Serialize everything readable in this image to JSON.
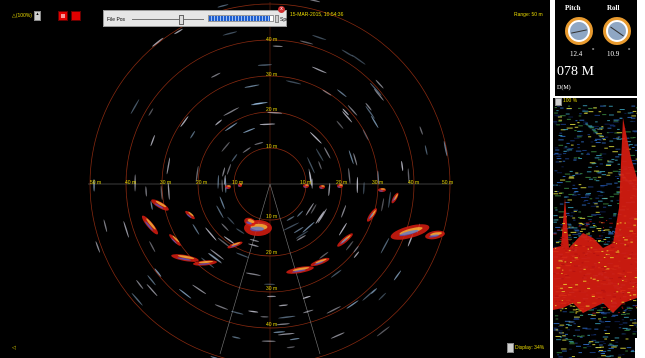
{
  "zoom_label": "△(100%)",
  "file_pos_label": "File Pos",
  "speed_label": "Speed",
  "datetime": "15-MAR-2015, 10:54:36",
  "range_label": "Range: 50 m",
  "display_label": "Display: 34%",
  "bottom_left_label": "◁",
  "close_glyph": "x",
  "range_ticks": {
    "top": [
      "40 m",
      "30 m",
      "20 m",
      "10 m"
    ],
    "left": [
      "50 m",
      "40 m",
      "30 m",
      "20 m",
      "10 m"
    ],
    "right": [
      "10 m",
      "20 m",
      "30 m",
      "40 m",
      "50 m"
    ],
    "bottom": [
      "10 m",
      "20 m",
      "30 m",
      "40 m"
    ]
  },
  "attitude": {
    "pitch_label": "Pitch",
    "roll_label": "Roll",
    "pitch_value": "12.4",
    "roll_value": "10.9",
    "degree_symbol": "°",
    "depth_value": "078 M",
    "depth_unit_label": "D(M)"
  },
  "echogram": {
    "zoom_label": "100 %"
  },
  "progress": {
    "file_pos_fraction": 0.65,
    "speed_fraction": 0.95
  },
  "colors": {
    "ring": "#8a2a10",
    "label": "#e8d800",
    "gauge_rim": "#e89a2e",
    "echo_red": "#d81c10"
  }
}
